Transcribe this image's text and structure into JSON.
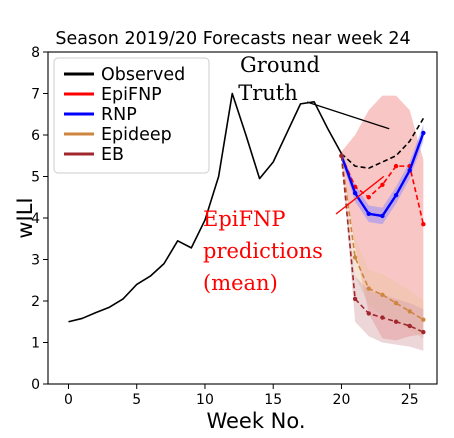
{
  "chart_data": {
    "type": "line",
    "title": "Season 2019/20 Forecasts near week 24",
    "xlabel": "Week No.",
    "ylabel": "wILI",
    "xlim": [
      -1.5,
      27
    ],
    "ylim": [
      0,
      8
    ],
    "xticks": [
      0,
      5,
      10,
      15,
      20,
      25
    ],
    "yticks": [
      0,
      1,
      2,
      3,
      4,
      5,
      6,
      7,
      8
    ],
    "grid": false,
    "legend_position": "top-left",
    "legend": [
      "Observed",
      "EpiFNP",
      "RNP",
      "Epideep",
      "EB"
    ],
    "series": [
      {
        "name": "Observed",
        "color": "#000000",
        "style": "solid",
        "x": [
          0,
          1,
          2,
          3,
          4,
          5,
          6,
          7,
          8,
          9,
          10,
          11,
          12,
          13,
          14,
          15,
          16,
          17,
          18,
          19,
          20
        ],
        "y": [
          1.5,
          1.58,
          1.72,
          1.85,
          2.05,
          2.4,
          2.6,
          2.9,
          3.45,
          3.28,
          3.95,
          5.0,
          7.0,
          6.0,
          4.95,
          5.35,
          6.05,
          6.75,
          6.8,
          6.15,
          5.55
        ]
      },
      {
        "name": "Ground Truth",
        "color": "#000000",
        "style": "dashed",
        "x": [
          20,
          21,
          22,
          23,
          24,
          25,
          26
        ],
        "y": [
          5.55,
          5.25,
          5.2,
          5.35,
          5.5,
          5.85,
          6.4
        ]
      },
      {
        "name": "EpiFNP",
        "color": "#ff0000",
        "style": "dashed",
        "markers": true,
        "x": [
          20,
          21,
          22,
          23,
          24,
          25,
          26
        ],
        "y": [
          5.5,
          4.75,
          4.5,
          4.8,
          5.25,
          5.25,
          3.85
        ],
        "band_lower": [
          5.45,
          3.3,
          1.7,
          1.1,
          1.05,
          1.15,
          1.2
        ],
        "band_upper": [
          5.6,
          6.0,
          6.6,
          6.95,
          6.95,
          6.6,
          5.4
        ],
        "band_color": "#f28080"
      },
      {
        "name": "RNP",
        "color": "#0000ff",
        "style": "solid",
        "markers": true,
        "x": [
          20,
          21,
          22,
          23,
          24,
          25,
          26
        ],
        "y": [
          5.5,
          4.6,
          4.1,
          4.05,
          4.55,
          5.15,
          6.05
        ],
        "band_lower": [
          5.4,
          4.4,
          3.9,
          3.85,
          4.35,
          4.95,
          5.85
        ],
        "band_upper": [
          5.6,
          4.8,
          4.3,
          4.25,
          4.75,
          5.35,
          6.25
        ],
        "band_color": "#8080ff"
      },
      {
        "name": "Epideep",
        "color": "#cd853f",
        "style": "dashed",
        "markers": true,
        "x": [
          20,
          21,
          22,
          23,
          24,
          25,
          26
        ],
        "y": [
          5.5,
          3.05,
          2.3,
          2.15,
          1.95,
          1.75,
          1.55
        ],
        "band_lower": [
          5.5,
          2.6,
          1.9,
          1.65,
          1.5,
          1.3,
          1.1
        ],
        "band_upper": [
          5.5,
          3.5,
          2.75,
          2.65,
          2.45,
          2.25,
          2.0
        ],
        "band_color": "#e8c39e"
      },
      {
        "name": "EB",
        "color": "#a0282d",
        "style": "dashed",
        "markers": true,
        "x": [
          20,
          21,
          22,
          23,
          24,
          25,
          26
        ],
        "y": [
          5.5,
          2.05,
          1.7,
          1.6,
          1.5,
          1.4,
          1.25
        ],
        "band_lower": [
          5.5,
          1.5,
          1.15,
          1.0,
          0.95,
          0.9,
          0.8
        ],
        "band_upper": [
          5.5,
          2.6,
          2.25,
          2.15,
          2.05,
          1.95,
          1.8
        ],
        "band_color": "#d4a3a8"
      }
    ],
    "annotations": [
      {
        "text": "Ground\nTruth",
        "color": "#000000",
        "arrow_to": [
          23.5,
          6.15
        ]
      },
      {
        "text": "EpiFNP\npredictions\n(mean)",
        "color": "#ff0000",
        "arrow_to": [
          23.4,
          5.05
        ]
      }
    ]
  }
}
